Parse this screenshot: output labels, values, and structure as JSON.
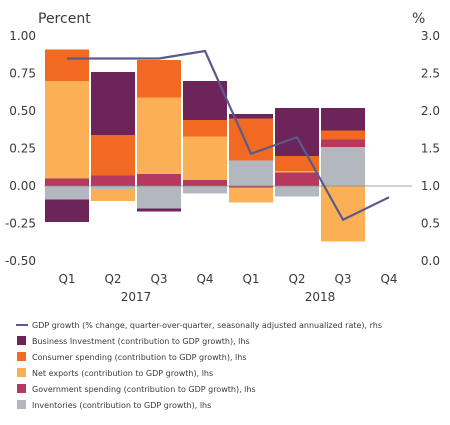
{
  "chart_data": {
    "type": "bar",
    "ylabel_left": "Percent",
    "ylabel_right": "%",
    "left_axis": {
      "min": -0.5,
      "max": 1.0,
      "ticks": [
        "-0.50",
        "-0.25",
        "0.00",
        "0.25",
        "0.50",
        "0.75",
        "1.00"
      ]
    },
    "right_axis": {
      "min": 0.0,
      "max": 3.0,
      "ticks": [
        "0.0",
        "0.5",
        "1.0",
        "1.5",
        "2.0",
        "2.5",
        "3.0"
      ]
    },
    "categories": [
      "Q1",
      "Q2",
      "Q3",
      "Q4",
      "Q1",
      "Q2",
      "Q3",
      "Q4"
    ],
    "year_labels": [
      {
        "label": "2017",
        "quarters": [
          0,
          3
        ]
      },
      {
        "label": "2018",
        "quarters": [
          4,
          7
        ]
      }
    ],
    "series": [
      {
        "name": "Inventories (contribution to GDP growth), lhs",
        "color": "#b3b8be",
        "values": [
          -0.09,
          -0.02,
          -0.15,
          -0.05,
          0.17,
          -0.07,
          0.26,
          null
        ]
      },
      {
        "name": "Government spending (contribution to GDP growth), lhs",
        "color": "#b5395e",
        "values": [
          0.05,
          0.07,
          0.08,
          0.04,
          -0.01,
          0.09,
          0.05,
          null
        ]
      },
      {
        "name": "Net exports (contribution to GDP growth), lhs",
        "color": "#fbb055",
        "values": [
          0.65,
          -0.08,
          0.51,
          0.29,
          -0.1,
          0.01,
          -0.37,
          null
        ]
      },
      {
        "name": "Consumer spending (contribution to GDP growth), lhs",
        "color": "#f26a21",
        "values": [
          0.21,
          0.27,
          0.25,
          0.11,
          0.28,
          0.1,
          0.06,
          null
        ]
      },
      {
        "name": "Business Investment (contribution to GDP growth), lhs",
        "color": "#6c2459",
        "values": [
          -0.15,
          0.42,
          -0.02,
          0.26,
          0.03,
          0.32,
          0.15,
          null
        ]
      }
    ],
    "line": {
      "name": "GDP growth (% change, quarter-over-quarter, seasonally adjusted annualized rate), rhs",
      "color": "#5c5a8c",
      "values": [
        2.7,
        2.7,
        2.7,
        2.8,
        1.43,
        1.65,
        0.55,
        0.85
      ]
    },
    "legend_order": [
      "GDP growth (% change, quarter-over-quarter, seasonally adjusted annualized rate), rhs",
      "Business Investment (contribution to GDP growth), lhs",
      "Consumer spending (contribution to GDP growth), lhs",
      "Net exports (contribution to GDP growth), lhs",
      "Government spending (contribution to GDP growth), lhs",
      "Inventories (contribution to GDP growth), lhs"
    ],
    "legend_placement": "bottom",
    "grid": false
  }
}
